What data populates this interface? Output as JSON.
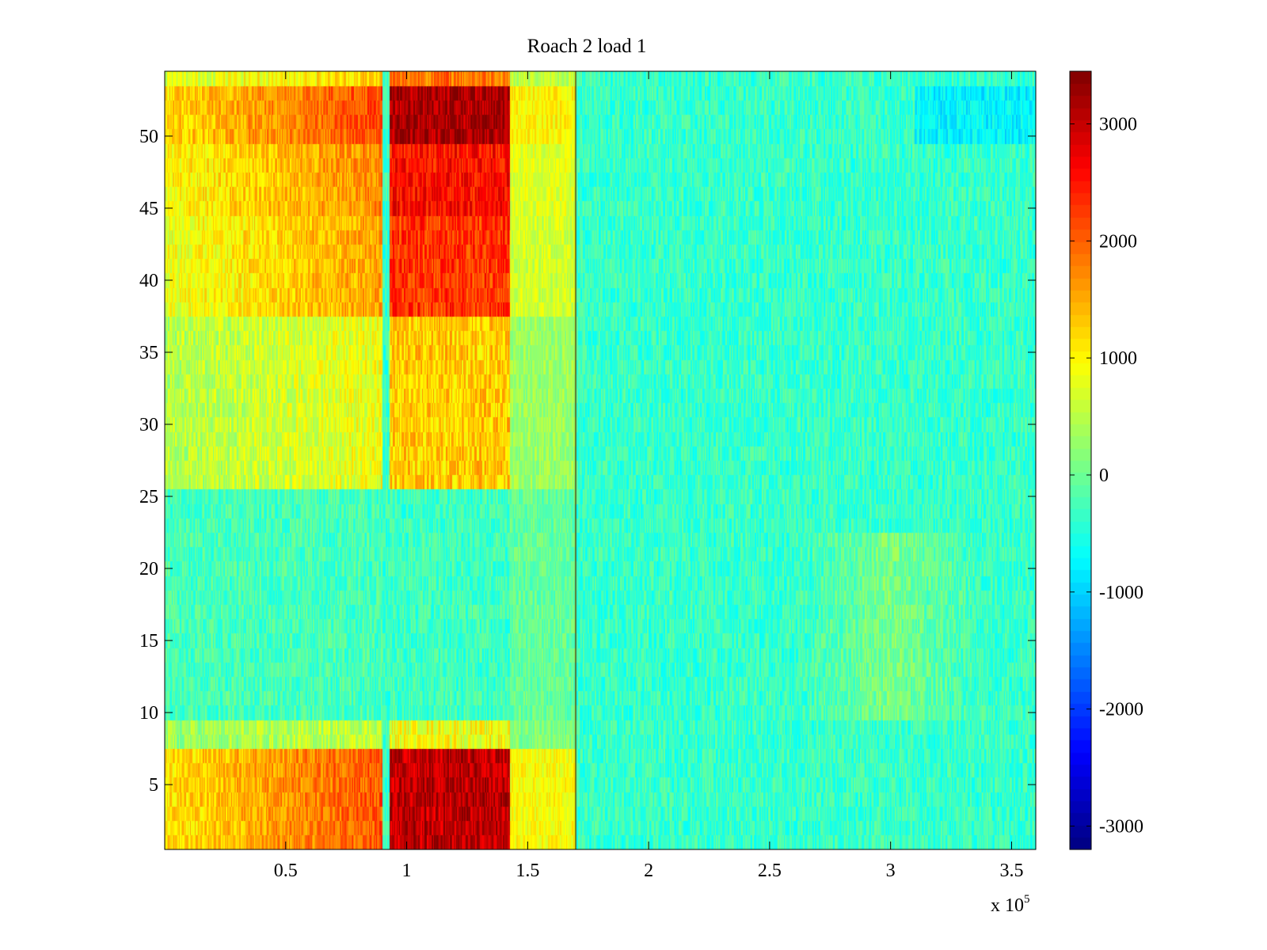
{
  "chart_data": {
    "type": "heatmap",
    "title": "Roach 2 load 1",
    "xlabel": "",
    "ylabel": "",
    "x_multiplier_label": "x 10",
    "x_multiplier_exponent": "5",
    "x_range": [
      0,
      3.6
    ],
    "x_ticks": [
      0.5,
      1,
      1.5,
      2,
      2.5,
      3,
      3.5
    ],
    "x_tick_labels": [
      "0.5",
      "1",
      "1.5",
      "2",
      "2.5",
      "3",
      "3.5"
    ],
    "y_range": [
      0.5,
      54.5
    ],
    "y_ticks": [
      5,
      10,
      15,
      20,
      25,
      30,
      35,
      40,
      45,
      50
    ],
    "y_tick_labels": [
      "5",
      "10",
      "15",
      "20",
      "25",
      "30",
      "35",
      "40",
      "45",
      "50"
    ],
    "rows": 54,
    "colormap": "jet",
    "color_range": [
      -3200,
      3450
    ],
    "colorbar_ticks": [
      3000,
      2000,
      1000,
      0,
      -1000,
      -2000,
      -3000
    ],
    "colorbar_tick_labels": [
      "3000",
      "2000",
      "1000",
      "0",
      "-1000",
      "-2000",
      "-3000"
    ],
    "x_bands": [
      {
        "x": [
          0.0,
          0.9
        ],
        "level": "high"
      },
      {
        "x": [
          0.9,
          0.93
        ],
        "level": "low"
      },
      {
        "x": [
          0.93,
          1.43
        ],
        "level": "very-high"
      },
      {
        "x": [
          1.43,
          1.7
        ],
        "level": "moderate"
      },
      {
        "x": [
          1.7,
          3.6
        ],
        "level": "low"
      }
    ],
    "row_profile": [
      {
        "rows": [
          1,
          7
        ],
        "level": "very-high"
      },
      {
        "rows": [
          8,
          9
        ],
        "level": "moderate"
      },
      {
        "rows": [
          10,
          25
        ],
        "level": "low"
      },
      {
        "rows": [
          26,
          37
        ],
        "level": "moderate"
      },
      {
        "rows": [
          38,
          54
        ],
        "level": "very-high"
      }
    ]
  }
}
